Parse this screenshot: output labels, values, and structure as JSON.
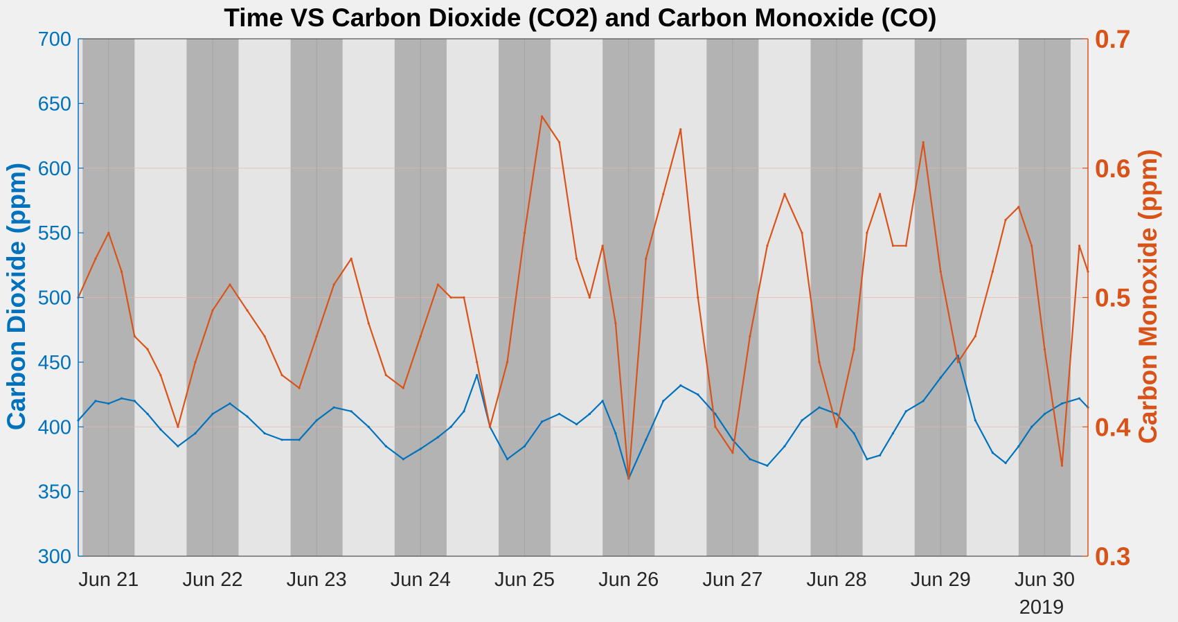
{
  "chart_data": {
    "type": "line",
    "title": "Time VS Carbon Dioxide (CO2) and Carbon Monoxide (CO)",
    "x_tick_labels": [
      "Jun 21",
      "Jun 22",
      "Jun 23",
      "Jun 24",
      "Jun 25",
      "Jun 26",
      "Jun 27",
      "Jun 28",
      "Jun 29",
      "Jun 30"
    ],
    "x_secondary_label": "2019",
    "x_range": [
      "2019-06-20 17:00",
      "2019-06-30 10:00"
    ],
    "y_left": {
      "label": "Carbon Dioxide (ppm)",
      "ylim": [
        300,
        700
      ],
      "ticks": [
        300,
        350,
        400,
        450,
        500,
        550,
        600,
        650,
        700
      ],
      "color": "#0072bd"
    },
    "y_right": {
      "label": "Carbon Monoxide (ppm)",
      "ylim": [
        0.3,
        0.7
      ],
      "ticks": [
        "0.3",
        "0.4",
        "0.5",
        "0.6",
        "0.7"
      ],
      "color": "#d95319"
    },
    "grid": true,
    "legend": "none",
    "night_shading": {
      "color": "#b3b3b3",
      "intervals": [
        [
          "2019-06-20 18:00",
          "2019-06-21 06:00"
        ],
        [
          "2019-06-21 18:00",
          "2019-06-22 06:00"
        ],
        [
          "2019-06-22 18:00",
          "2019-06-23 06:00"
        ],
        [
          "2019-06-23 18:00",
          "2019-06-24 06:00"
        ],
        [
          "2019-06-24 18:00",
          "2019-06-25 06:00"
        ],
        [
          "2019-06-25 18:00",
          "2019-06-26 06:00"
        ],
        [
          "2019-06-26 18:00",
          "2019-06-27 06:00"
        ],
        [
          "2019-06-27 18:00",
          "2019-06-28 06:00"
        ],
        [
          "2019-06-28 18:00",
          "2019-06-29 06:00"
        ],
        [
          "2019-06-29 18:00",
          "2019-06-30 06:00"
        ]
      ]
    },
    "day_background_color": "#e5e5e5",
    "series": [
      {
        "name": "Carbon Dioxide",
        "axis": "left",
        "color": "#0072bd",
        "x": [
          "2019-06-20 17:00",
          "2019-06-20 21:00",
          "2019-06-21 00:00",
          "2019-06-21 03:00",
          "2019-06-21 06:00",
          "2019-06-21 09:00",
          "2019-06-21 12:00",
          "2019-06-21 16:00",
          "2019-06-21 20:00",
          "2019-06-22 00:00",
          "2019-06-22 04:00",
          "2019-06-22 08:00",
          "2019-06-22 12:00",
          "2019-06-22 16:00",
          "2019-06-22 20:00",
          "2019-06-23 00:00",
          "2019-06-23 04:00",
          "2019-06-23 08:00",
          "2019-06-23 12:00",
          "2019-06-23 16:00",
          "2019-06-23 20:00",
          "2019-06-24 00:00",
          "2019-06-24 04:00",
          "2019-06-24 07:00",
          "2019-06-24 10:00",
          "2019-06-24 13:00",
          "2019-06-24 16:00",
          "2019-06-24 20:00",
          "2019-06-25 00:00",
          "2019-06-25 04:00",
          "2019-06-25 08:00",
          "2019-06-25 12:00",
          "2019-06-25 15:00",
          "2019-06-25 18:00",
          "2019-06-25 21:00",
          "2019-06-26 00:00",
          "2019-06-26 04:00",
          "2019-06-26 08:00",
          "2019-06-26 12:00",
          "2019-06-26 16:00",
          "2019-06-26 20:00",
          "2019-06-27 00:00",
          "2019-06-27 04:00",
          "2019-06-27 08:00",
          "2019-06-27 12:00",
          "2019-06-27 16:00",
          "2019-06-27 20:00",
          "2019-06-28 00:00",
          "2019-06-28 04:00",
          "2019-06-28 07:00",
          "2019-06-28 10:00",
          "2019-06-28 13:00",
          "2019-06-28 16:00",
          "2019-06-28 20:00",
          "2019-06-29 00:00",
          "2019-06-29 04:00",
          "2019-06-29 08:00",
          "2019-06-29 12:00",
          "2019-06-29 15:00",
          "2019-06-29 18:00",
          "2019-06-29 21:00",
          "2019-06-30 00:00",
          "2019-06-30 04:00",
          "2019-06-30 08:00",
          "2019-06-30 10:00"
        ],
        "y": [
          405,
          420,
          418,
          422,
          420,
          410,
          398,
          385,
          395,
          410,
          418,
          408,
          395,
          390,
          390,
          405,
          415,
          412,
          400,
          385,
          375,
          383,
          392,
          400,
          412,
          440,
          400,
          375,
          385,
          404,
          410,
          402,
          410,
          420,
          395,
          360,
          390,
          420,
          432,
          425,
          410,
          390,
          375,
          370,
          385,
          405,
          415,
          410,
          395,
          375,
          378,
          395,
          412,
          420,
          438,
          455,
          405,
          380,
          372,
          385,
          400,
          410,
          418,
          422,
          415
        ]
      },
      {
        "name": "Carbon Monoxide",
        "axis": "right",
        "color": "#d95319",
        "x": [
          "2019-06-20 17:00",
          "2019-06-20 21:00",
          "2019-06-21 00:00",
          "2019-06-21 03:00",
          "2019-06-21 06:00",
          "2019-06-21 09:00",
          "2019-06-21 12:00",
          "2019-06-21 16:00",
          "2019-06-21 20:00",
          "2019-06-22 00:00",
          "2019-06-22 04:00",
          "2019-06-22 08:00",
          "2019-06-22 12:00",
          "2019-06-22 16:00",
          "2019-06-22 20:00",
          "2019-06-23 00:00",
          "2019-06-23 04:00",
          "2019-06-23 08:00",
          "2019-06-23 12:00",
          "2019-06-23 16:00",
          "2019-06-23 20:00",
          "2019-06-24 00:00",
          "2019-06-24 04:00",
          "2019-06-24 07:00",
          "2019-06-24 10:00",
          "2019-06-24 13:00",
          "2019-06-24 16:00",
          "2019-06-24 20:00",
          "2019-06-25 00:00",
          "2019-06-25 04:00",
          "2019-06-25 08:00",
          "2019-06-25 12:00",
          "2019-06-25 15:00",
          "2019-06-25 18:00",
          "2019-06-25 21:00",
          "2019-06-26 00:00",
          "2019-06-26 04:00",
          "2019-06-26 08:00",
          "2019-06-26 12:00",
          "2019-06-26 16:00",
          "2019-06-26 20:00",
          "2019-06-27 00:00",
          "2019-06-27 04:00",
          "2019-06-27 08:00",
          "2019-06-27 12:00",
          "2019-06-27 16:00",
          "2019-06-27 20:00",
          "2019-06-28 00:00",
          "2019-06-28 04:00",
          "2019-06-28 07:00",
          "2019-06-28 10:00",
          "2019-06-28 13:00",
          "2019-06-28 16:00",
          "2019-06-28 20:00",
          "2019-06-29 00:00",
          "2019-06-29 04:00",
          "2019-06-29 08:00",
          "2019-06-29 12:00",
          "2019-06-29 15:00",
          "2019-06-29 18:00",
          "2019-06-29 21:00",
          "2019-06-30 00:00",
          "2019-06-30 04:00",
          "2019-06-30 08:00",
          "2019-06-30 10:00"
        ],
        "y": [
          0.5,
          0.53,
          0.55,
          0.52,
          0.47,
          0.46,
          0.44,
          0.4,
          0.45,
          0.49,
          0.51,
          0.49,
          0.47,
          0.44,
          0.43,
          0.47,
          0.51,
          0.53,
          0.48,
          0.44,
          0.43,
          0.47,
          0.51,
          0.5,
          0.5,
          0.45,
          0.4,
          0.45,
          0.55,
          0.64,
          0.62,
          0.53,
          0.5,
          0.54,
          0.48,
          0.36,
          0.53,
          0.58,
          0.63,
          0.5,
          0.4,
          0.38,
          0.47,
          0.54,
          0.58,
          0.55,
          0.45,
          0.4,
          0.46,
          0.55,
          0.58,
          0.54,
          0.54,
          0.62,
          0.52,
          0.45,
          0.47,
          0.52,
          0.56,
          0.57,
          0.54,
          0.46,
          0.37,
          0.54,
          0.52
        ]
      }
    ]
  }
}
